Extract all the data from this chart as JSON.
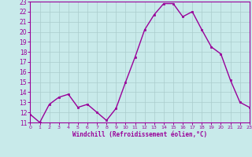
{
  "x": [
    0,
    1,
    2,
    3,
    4,
    5,
    6,
    7,
    8,
    9,
    10,
    11,
    12,
    13,
    14,
    15,
    16,
    17,
    18,
    19,
    20,
    21,
    22,
    23
  ],
  "y": [
    11.8,
    11.0,
    12.8,
    13.5,
    13.8,
    12.5,
    12.8,
    12.0,
    11.2,
    12.4,
    15.0,
    17.5,
    20.2,
    21.7,
    22.8,
    22.8,
    21.5,
    22.0,
    20.2,
    18.5,
    17.8,
    15.2,
    13.0,
    12.5
  ],
  "xlabel": "Windchill (Refroidissement éolien,°C)",
  "ylim": [
    11,
    23
  ],
  "xlim": [
    0,
    23
  ],
  "yticks": [
    11,
    12,
    13,
    14,
    15,
    16,
    17,
    18,
    19,
    20,
    21,
    22,
    23
  ],
  "xticks": [
    0,
    1,
    2,
    3,
    4,
    5,
    6,
    7,
    8,
    9,
    10,
    11,
    12,
    13,
    14,
    15,
    16,
    17,
    18,
    19,
    20,
    21,
    22,
    23
  ],
  "line_color": "#990099",
  "marker_color": "#990099",
  "bg_color": "#c8eaea",
  "grid_color": "#aacccc"
}
